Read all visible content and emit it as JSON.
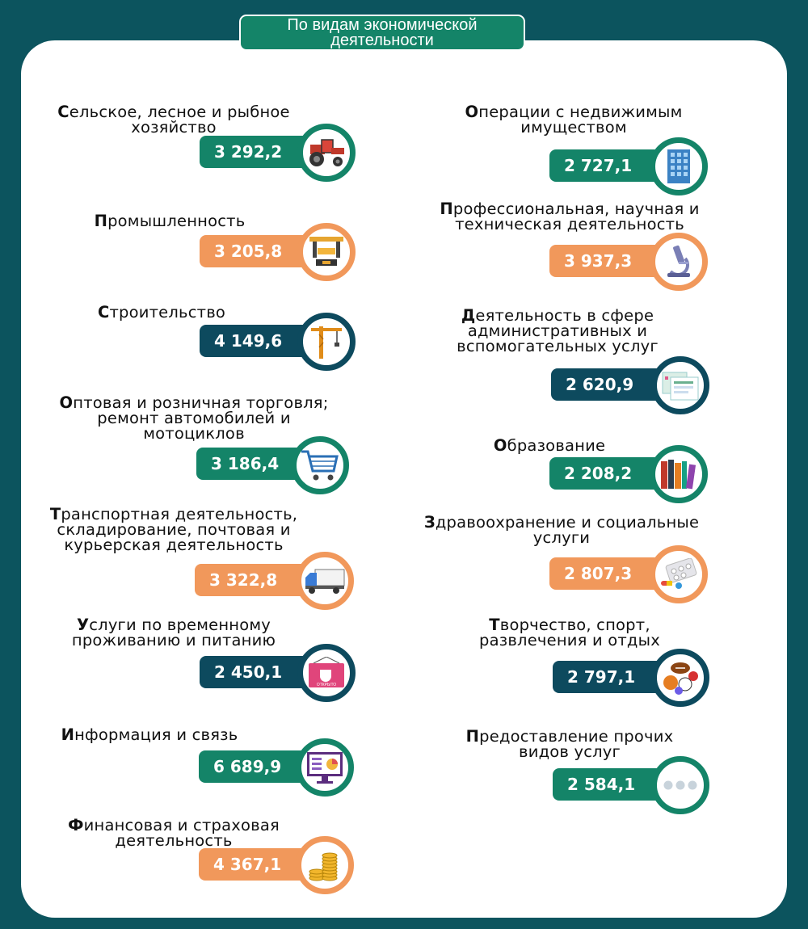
{
  "header": "По видам экономической деятельности",
  "header_lines": [
    "По видам экономической",
    "деятельности"
  ],
  "items": [
    {
      "label_lines": [
        "Сельское, лесное и рыбное",
        "хозяйство"
      ],
      "value": "3 292,2",
      "color": "#148468",
      "icon": "tractor-icon"
    },
    {
      "label_lines": [
        "Промышленность"
      ],
      "value": "3 205,8",
      "color": "#f1985b",
      "icon": "robot-arm-icon"
    },
    {
      "label_lines": [
        "Строительство"
      ],
      "value": "4 149,6",
      "color": "#0d4a5e",
      "icon": "crane-icon"
    },
    {
      "label_lines": [
        "Оптовая и розничная торговля;",
        "ремонт автомобилей и",
        "мотоциклов"
      ],
      "value": "3 186,4",
      "color": "#148468",
      "icon": "shopping-cart-icon"
    },
    {
      "label_lines": [
        "Транспортная деятельность,",
        "складирование, почтовая и",
        "курьерская деятельность"
      ],
      "value": "3 322,8",
      "color": "#f1985b",
      "icon": "truck-icon"
    },
    {
      "label_lines": [
        "Услуги по временному",
        "проживанию и питанию"
      ],
      "value": "2 450,1",
      "color": "#0d4a5e",
      "icon": "cafe-sign-icon",
      "sign_text": "ОТКРЫТО"
    },
    {
      "label_lines": [
        "Информация и связь"
      ],
      "value": "6 689,9",
      "color": "#148468",
      "icon": "monitor-chart-icon"
    },
    {
      "label_lines": [
        "Финансовая  и страховая",
        "деятельность"
      ],
      "value": "4 367,1",
      "color": "#f1985b",
      "icon": "coins-icon"
    },
    {
      "label_lines": [
        "Операции с недвижимым",
        "имуществом"
      ],
      "value": "2 727,1",
      "color": "#148468",
      "icon": "building-icon"
    },
    {
      "label_lines": [
        "Профессиональная, научная и",
        "техническая деятельность"
      ],
      "value": "3 937,3",
      "color": "#f1985b",
      "icon": "microscope-icon"
    },
    {
      "label_lines": [
        "Деятельность в сфере",
        "административных и",
        "вспомогательных услуг"
      ],
      "value": "2 620,9",
      "color": "#0d4a5e",
      "icon": "documents-icon"
    },
    {
      "label_lines": [
        "Образование"
      ],
      "value": "2 208,2",
      "color": "#148468",
      "icon": "books-icon"
    },
    {
      "label_lines": [
        "Здравоохранение и социальные",
        "услуги"
      ],
      "value": "2 807,3",
      "color": "#f1985b",
      "icon": "pills-icon"
    },
    {
      "label_lines": [
        "Творчество, спорт,",
        "развлечения и отдых"
      ],
      "value": "2 797,1",
      "color": "#0d4a5e",
      "icon": "sports-balls-icon"
    },
    {
      "label_lines": [
        "Предоставление прочих",
        "видов услуг"
      ],
      "value": "2 584,1",
      "color": "#148468",
      "icon": "more-dots-icon"
    }
  ]
}
